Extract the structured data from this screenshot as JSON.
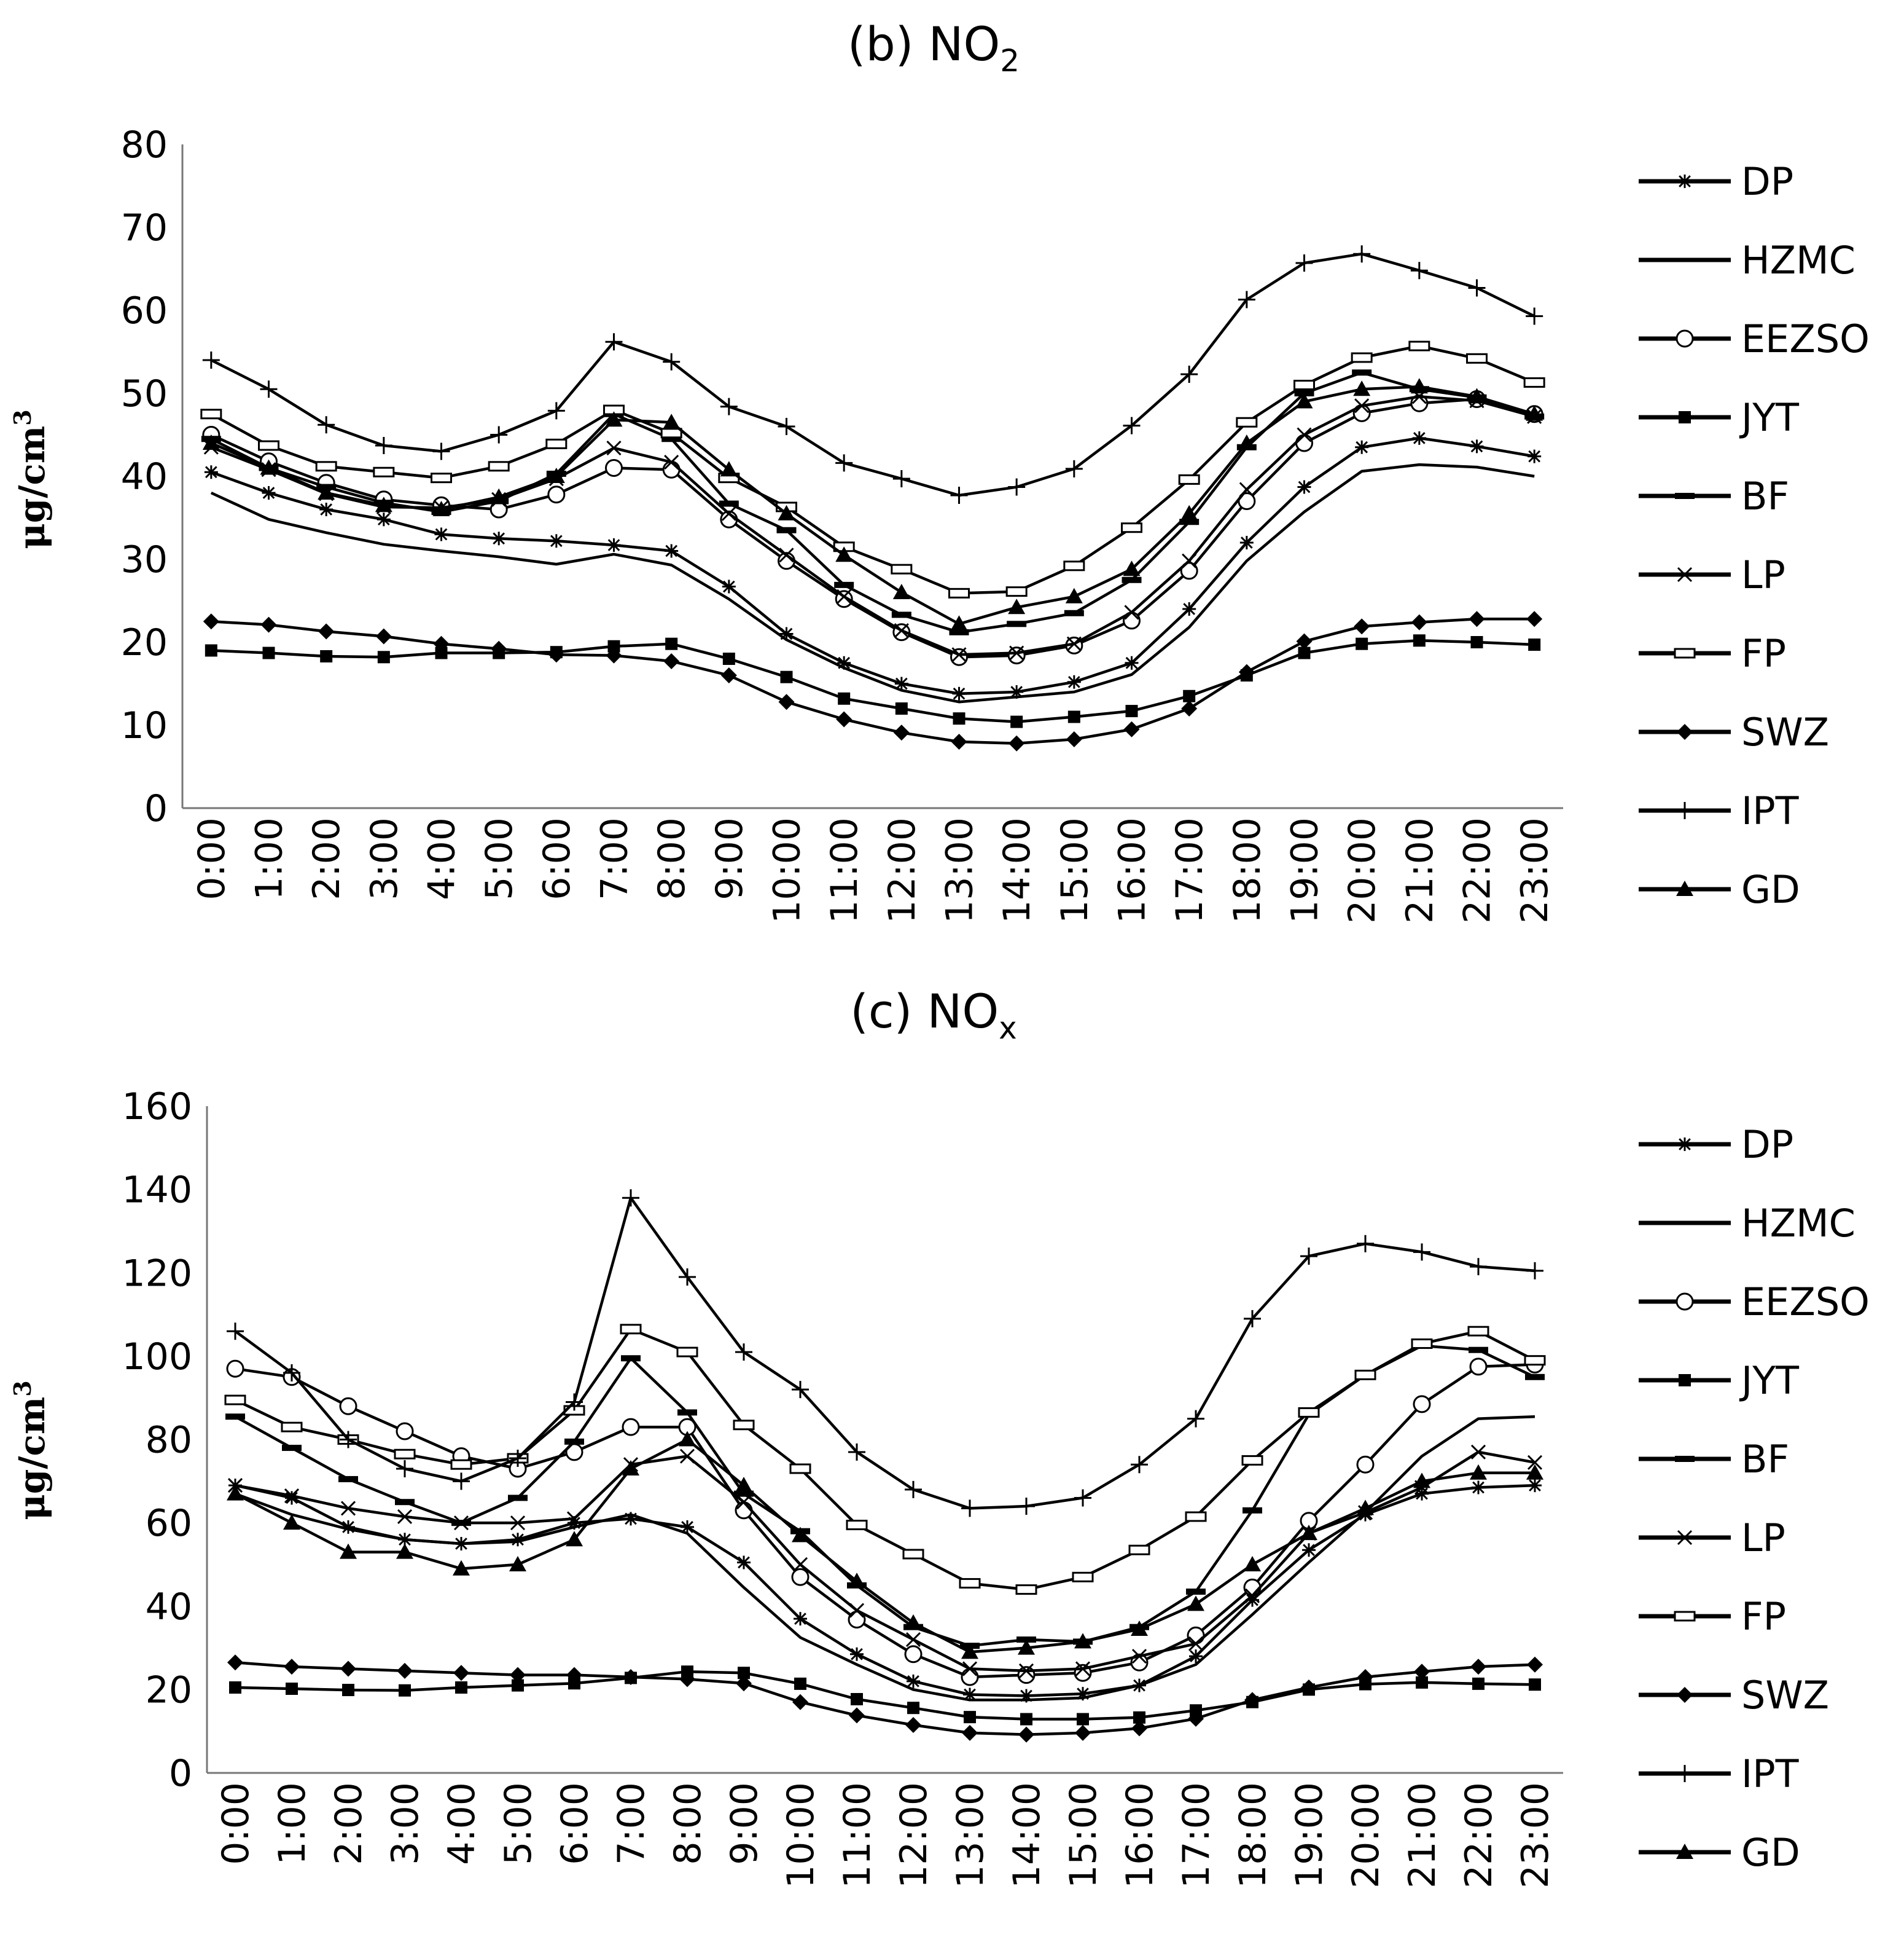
{
  "chart_data": [
    {
      "type": "line",
      "title": "(b) NO",
      "title_sub": "2",
      "ylabel": "μg/cm",
      "ylabel_sup": "3",
      "ylim": [
        0,
        80
      ],
      "yticks": [
        0,
        10,
        20,
        30,
        40,
        50,
        60,
        70,
        80
      ],
      "categories": [
        "0:00",
        "1:00",
        "2:00",
        "3:00",
        "4:00",
        "5:00",
        "6:00",
        "7:00",
        "8:00",
        "9:00",
        "10:00",
        "11:00",
        "12:00",
        "13:00",
        "14:00",
        "15:00",
        "16:00",
        "17:00",
        "18:00",
        "19:00",
        "20:00",
        "21:00",
        "22:00",
        "23:00"
      ],
      "series": [
        {
          "name": "DP",
          "marker": "asterisk",
          "values": [
            40.5,
            38,
            36,
            34.8,
            33,
            32.5,
            32.2,
            31.7,
            31,
            26.7,
            21,
            17.5,
            15,
            13.8,
            14,
            15.2,
            17.5,
            24,
            32,
            38.7,
            43.5,
            44.6,
            43.6,
            42.4
          ]
        },
        {
          "name": "HZMC",
          "marker": "none",
          "values": [
            38,
            34.8,
            33.2,
            31.8,
            31,
            30.3,
            29.4,
            30.6,
            29.3,
            25.2,
            20.3,
            16.9,
            14.2,
            12.8,
            13.4,
            14,
            16.1,
            21.8,
            29.8,
            35.7,
            40.6,
            41.4,
            41.1,
            40
          ]
        },
        {
          "name": "EEZSO",
          "marker": "circle",
          "values": [
            45,
            41.8,
            39.2,
            37.2,
            36.5,
            36,
            37.8,
            41,
            40.8,
            34.8,
            29.8,
            25.2,
            21.2,
            18.2,
            18.4,
            19.6,
            22.6,
            28.6,
            37,
            44,
            47.6,
            48.8,
            49.3,
            47.5
          ]
        },
        {
          "name": "JYT",
          "marker": "square",
          "values": [
            19,
            18.7,
            18.3,
            18.2,
            18.7,
            18.7,
            18.8,
            19.5,
            19.8,
            18,
            15.8,
            13.2,
            12,
            10.8,
            10.4,
            11,
            11.7,
            13.5,
            16,
            18.7,
            19.8,
            20.2,
            20,
            19.7
          ]
        },
        {
          "name": "BF",
          "marker": "dash",
          "values": [
            44.5,
            41,
            38.7,
            36.8,
            35.7,
            37,
            40.3,
            47.5,
            44.5,
            36.7,
            33.5,
            26.9,
            23.3,
            21.2,
            22.2,
            23.5,
            27.5,
            34.5,
            43.5,
            50,
            52.5,
            50.5,
            49.5,
            47.2
          ]
        },
        {
          "name": "LP",
          "marker": "x",
          "values": [
            43.5,
            40.8,
            37.9,
            36.3,
            36.2,
            37.2,
            39.7,
            43.4,
            41.7,
            35.5,
            30.5,
            25.5,
            21.4,
            18.5,
            18.7,
            19.8,
            23.6,
            29.8,
            38.4,
            45,
            48.5,
            49.6,
            49.1,
            47.2
          ]
        },
        {
          "name": "FP",
          "marker": "rect",
          "values": [
            47.5,
            43.7,
            41.2,
            40.5,
            39.8,
            41.2,
            43.9,
            48,
            45.2,
            39.8,
            36.3,
            31.5,
            28.8,
            25.9,
            26.1,
            29.2,
            33.8,
            39.6,
            46.5,
            51,
            54.3,
            55.7,
            54.2,
            51.3
          ]
        },
        {
          "name": "SWZ",
          "marker": "diamond",
          "values": [
            22.5,
            22.1,
            21.3,
            20.7,
            19.8,
            19.2,
            18.5,
            18.4,
            17.7,
            16,
            12.8,
            10.7,
            9.1,
            8,
            7.8,
            8.3,
            9.5,
            12,
            16.4,
            20.1,
            21.9,
            22.4,
            22.8,
            22.8
          ]
        },
        {
          "name": "IPT",
          "marker": "plus",
          "values": [
            54,
            50.5,
            46.2,
            43.7,
            43,
            45,
            47.9,
            56.2,
            53.8,
            48.4,
            46,
            41.6,
            39.7,
            37.7,
            38.7,
            40.9,
            46.1,
            52.3,
            61.3,
            65.7,
            66.8,
            64.8,
            62.7,
            59.3
          ]
        },
        {
          "name": "GD",
          "marker": "triangle",
          "values": [
            44,
            41,
            38,
            36.5,
            36,
            37.5,
            40,
            46.8,
            46.5,
            40.8,
            35.5,
            30.5,
            26,
            22.2,
            24.2,
            25.5,
            28.8,
            35.5,
            44,
            49,
            50.5,
            50.8,
            49.6,
            47.5
          ]
        }
      ]
    },
    {
      "type": "line",
      "title": "(c) NO",
      "title_sub": "x",
      "ylabel": "μg/cm",
      "ylabel_sup": "3",
      "ylim": [
        0,
        160
      ],
      "yticks": [
        0,
        20,
        40,
        60,
        80,
        100,
        120,
        140,
        160
      ],
      "categories": [
        "0:00",
        "1:00",
        "2:00",
        "3:00",
        "4:00",
        "5:00",
        "6:00",
        "7:00",
        "8:00",
        "9:00",
        "10:00",
        "11:00",
        "12:00",
        "13:00",
        "14:00",
        "15:00",
        "16:00",
        "17:00",
        "18:00",
        "19:00",
        "20:00",
        "21:00",
        "22:00",
        "23:00"
      ],
      "series": [
        {
          "name": "DP",
          "marker": "asterisk",
          "values": [
            69,
            66,
            59,
            56,
            55,
            56,
            60,
            61,
            59,
            50.5,
            37,
            28.5,
            22,
            18.8,
            18.5,
            19,
            21,
            28,
            41.5,
            53.5,
            62,
            67,
            68.5,
            69
          ]
        },
        {
          "name": "HZMC",
          "marker": "none",
          "values": [
            67,
            62,
            58.5,
            56,
            55,
            55.5,
            59,
            62,
            57.5,
            44.5,
            32.5,
            26,
            20,
            17.5,
            17.5,
            18,
            21,
            26,
            38,
            50.5,
            62.5,
            76,
            85,
            85.5
          ]
        },
        {
          "name": "EEZSO",
          "marker": "circle",
          "values": [
            97,
            95,
            88,
            82,
            76,
            73,
            77,
            83,
            83,
            63,
            47,
            36.8,
            28.5,
            23,
            23.5,
            24,
            26.5,
            33,
            44.5,
            60.5,
            74,
            88.5,
            97.5,
            98
          ]
        },
        {
          "name": "JYT",
          "marker": "square",
          "values": [
            20.5,
            20.2,
            19.9,
            19.8,
            20.5,
            21,
            21.5,
            22.8,
            24.3,
            24,
            21.4,
            17.7,
            15.6,
            13.4,
            12.9,
            12.9,
            13.3,
            15,
            17,
            20,
            21.3,
            21.7,
            21.4,
            21.2
          ]
        },
        {
          "name": "BF",
          "marker": "dash",
          "values": [
            85.5,
            78,
            70.5,
            65,
            60,
            66,
            79.5,
            99.5,
            86.5,
            67,
            58,
            45,
            35,
            30.5,
            32,
            31.5,
            35,
            43.5,
            63,
            86,
            95.5,
            102.5,
            101.5,
            95
          ]
        },
        {
          "name": "LP",
          "marker": "x",
          "values": [
            69,
            66.5,
            63.5,
            61.5,
            60,
            60,
            61,
            74,
            76,
            65,
            50,
            39,
            32,
            25,
            24.5,
            25,
            28,
            31,
            42.5,
            57.5,
            62.5,
            68.5,
            77,
            74.5
          ]
        },
        {
          "name": "FP",
          "marker": "rect",
          "values": [
            89.5,
            83,
            80,
            76.5,
            74,
            75.5,
            87,
            106.5,
            101,
            83.5,
            73,
            59.5,
            52.5,
            45.5,
            44,
            47,
            53.5,
            61.5,
            75,
            86.5,
            95.5,
            103,
            106,
            99
          ]
        },
        {
          "name": "SWZ",
          "marker": "diamond",
          "values": [
            26.5,
            25.5,
            25,
            24.5,
            24,
            23.5,
            23.5,
            23,
            22.5,
            21.5,
            17,
            13.8,
            11.5,
            9.6,
            9.2,
            9.6,
            10.7,
            13,
            17.5,
            20.5,
            23,
            24.3,
            25.5,
            26
          ]
        },
        {
          "name": "IPT",
          "marker": "plus",
          "values": [
            106,
            96,
            80,
            73,
            70,
            75.5,
            89,
            138,
            119,
            101,
            92,
            77,
            68,
            63.5,
            64,
            66,
            74,
            85,
            109,
            124,
            127,
            125,
            121.5,
            120.5
          ]
        },
        {
          "name": "GD",
          "marker": "triangle",
          "values": [
            67,
            60,
            53,
            53,
            49,
            50,
            56,
            73,
            80,
            69,
            57,
            46,
            36,
            29,
            30,
            31.5,
            34.5,
            40.5,
            50,
            57.5,
            63.5,
            70,
            72,
            72
          ]
        }
      ]
    }
  ]
}
